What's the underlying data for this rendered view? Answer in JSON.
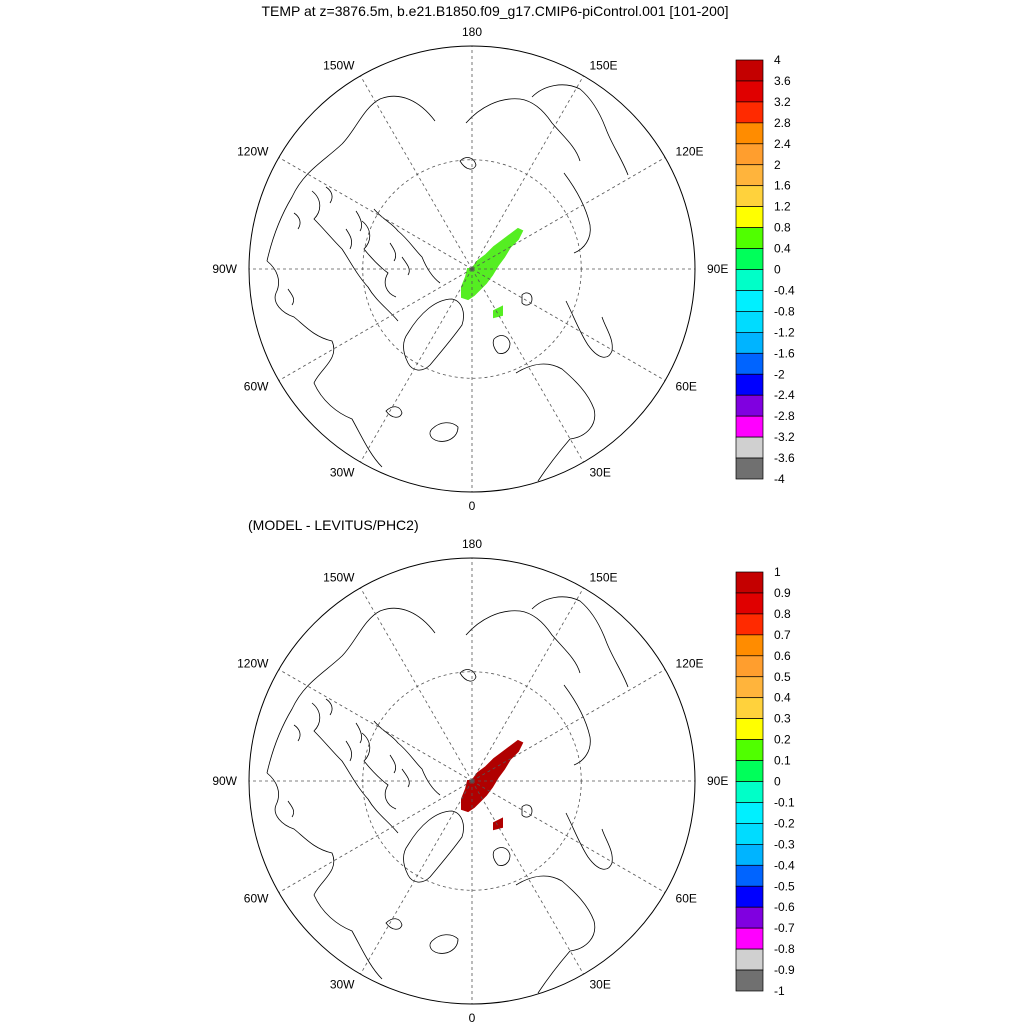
{
  "figure": {
    "title": "TEMP at z=3876.5m, b.e21.B1850.f09_g17.CMIP6-piControl.001 [101-200]",
    "subtitle": "(MODEL - LEVITUS/PHC2)"
  },
  "maps": [
    {
      "longitude_labels": [
        "180",
        "150E",
        "120E",
        "90E",
        "60E",
        "30E",
        "0",
        "30W",
        "60W",
        "90W",
        "120W",
        "150W"
      ],
      "colorbar": {
        "labels": [
          "4",
          "3.6",
          "3.2",
          "2.8",
          "2.4",
          "2",
          "1.6",
          "1.2",
          "0.8",
          "0.4",
          "0",
          "-0.4",
          "-0.8",
          "-1.2",
          "-1.6",
          "-2",
          "-2.4",
          "-2.8",
          "-3.2",
          "-3.6",
          "-4"
        ],
        "colors": [
          "#c40000",
          "#e00000",
          "#ff2a00",
          "#ff8c00",
          "#ff9e2e",
          "#ffb43c",
          "#ffd23c",
          "#ffff00",
          "#50ff00",
          "#00ff5a",
          "#00ffc8",
          "#00f0ff",
          "#00dcff",
          "#00b4ff",
          "#0064ff",
          "#0000ff",
          "#8000e0",
          "#ff00ff",
          "#d0d0d0",
          "#707070"
        ]
      },
      "field": {
        "color": "#55ee22",
        "value_class": "0.4 to 0.8"
      }
    },
    {
      "longitude_labels": [
        "180",
        "150E",
        "120E",
        "90E",
        "60E",
        "30E",
        "0",
        "30W",
        "60W",
        "90W",
        "120W",
        "150W"
      ],
      "colorbar": {
        "labels": [
          "1",
          "0.9",
          "0.8",
          "0.7",
          "0.6",
          "0.5",
          "0.4",
          "0.3",
          "0.2",
          "0.1",
          "0",
          "-0.1",
          "-0.2",
          "-0.3",
          "-0.4",
          "-0.5",
          "-0.6",
          "-0.7",
          "-0.8",
          "-0.9",
          "-1"
        ],
        "colors": [
          "#c40000",
          "#e00000",
          "#ff2a00",
          "#ff8c00",
          "#ff9e2e",
          "#ffb43c",
          "#ffd23c",
          "#ffff00",
          "#50ff00",
          "#00ff5a",
          "#00ffc8",
          "#00f0ff",
          "#00dcff",
          "#00b4ff",
          "#0064ff",
          "#0000ff",
          "#8000e0",
          "#ff00ff",
          "#d0d0d0",
          "#707070"
        ]
      },
      "field": {
        "color": "#b00000",
        "value_class": "0.9 to 1"
      }
    }
  ]
}
